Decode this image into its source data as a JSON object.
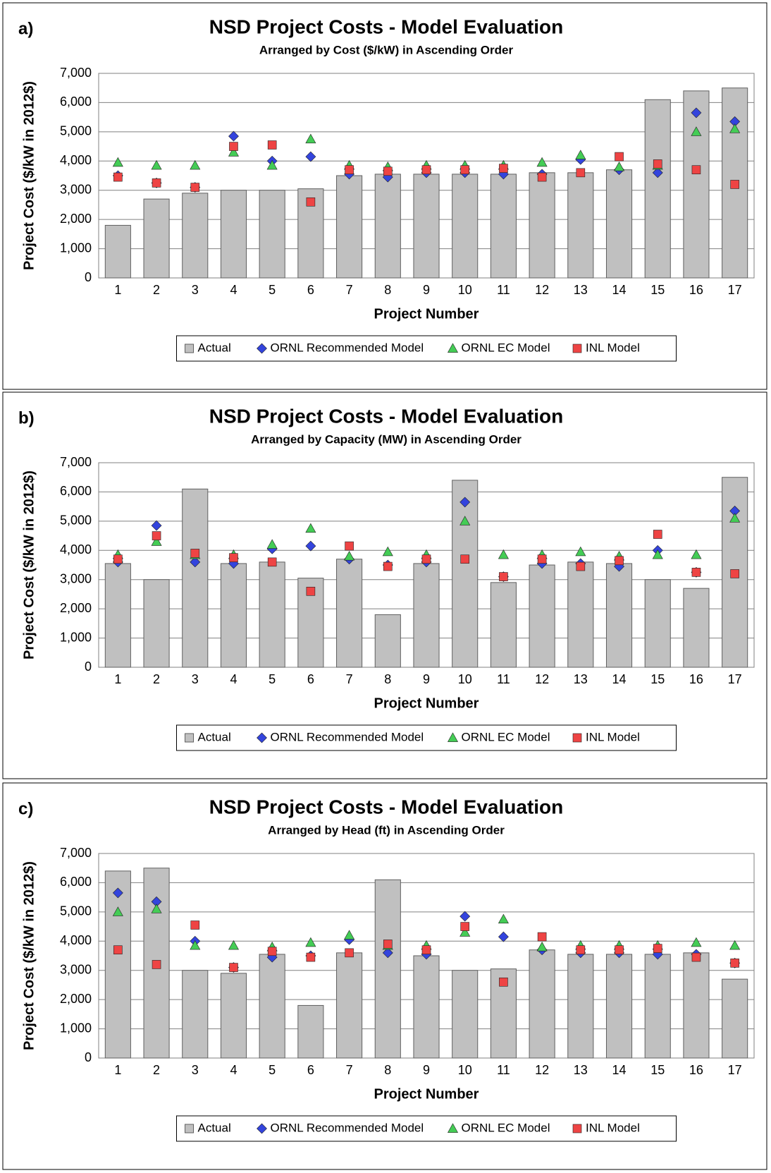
{
  "chart_data": [
    {
      "type": "bar",
      "label": "a)",
      "title": "NSD Project Costs - Model Evaluation",
      "subtitle": "Arranged by Cost ($/kW) in Ascending Order",
      "y_label": "Project Cost ($/kW in 2012$)",
      "x_label": "Project Number",
      "categories": [
        "1",
        "2",
        "3",
        "4",
        "5",
        "6",
        "7",
        "8",
        "9",
        "10",
        "11",
        "12",
        "13",
        "14",
        "15",
        "16",
        "17"
      ],
      "ylim": [
        0,
        7000
      ],
      "yticks": [
        0,
        {
          "value": 1000,
          "label": "1,000"
        },
        {
          "value": 2000,
          "label": "2,000"
        },
        {
          "value": 3000,
          "label": "3,000"
        },
        {
          "value": 4000,
          "label": "4,000"
        },
        {
          "value": 5000,
          "label": "5,000"
        },
        {
          "value": 6000,
          "label": "6,000"
        },
        {
          "value": 7000,
          "label": "7,000"
        }
      ],
      "grid": true,
      "series": [
        {
          "name": "Actual",
          "marker": "bar",
          "color": "#c0c0c0",
          "values": [
            1800,
            2700,
            2900,
            3000,
            3000,
            3050,
            3500,
            3550,
            3550,
            3550,
            3550,
            3600,
            3600,
            3700,
            6100,
            6400,
            6500
          ]
        },
        {
          "name": "ORNL Recommended Model",
          "marker": "diamond",
          "color": "#3344dd",
          "values": [
            3500,
            3250,
            3100,
            4850,
            4000,
            4150,
            3550,
            3450,
            3600,
            3600,
            3550,
            3550,
            4050,
            3700,
            3600,
            5650,
            5350
          ]
        },
        {
          "name": "ORNL EC Model",
          "marker": "triangle",
          "color": "#44cc55",
          "values": [
            3950,
            3850,
            3850,
            4300,
            3850,
            4750,
            3850,
            3800,
            3850,
            3850,
            3850,
            3950,
            4200,
            3800,
            3850,
            5000,
            5100
          ]
        },
        {
          "name": "INL Model",
          "marker": "square",
          "color": "#ee4444",
          "values": [
            3450,
            3250,
            3100,
            4500,
            4550,
            2600,
            3700,
            3650,
            3700,
            3700,
            3750,
            3450,
            3600,
            4150,
            3900,
            3700,
            3200
          ]
        }
      ]
    },
    {
      "type": "bar",
      "label": "b)",
      "title": "NSD Project Costs - Model Evaluation",
      "subtitle": "Arranged by  Capacity (MW) in Ascending Order",
      "y_label": "Project Cost ($/kW in 2012$)",
      "x_label": "Project Number",
      "categories": [
        "1",
        "2",
        "3",
        "4",
        "5",
        "6",
        "7",
        "8",
        "9",
        "10",
        "11",
        "12",
        "13",
        "14",
        "15",
        "16",
        "17"
      ],
      "ylim": [
        0,
        7000
      ],
      "yticks": [
        0,
        {
          "value": 1000,
          "label": "1,000"
        },
        {
          "value": 2000,
          "label": "2,000"
        },
        {
          "value": 3000,
          "label": "3,000"
        },
        {
          "value": 4000,
          "label": "4,000"
        },
        {
          "value": 5000,
          "label": "5,000"
        },
        {
          "value": 6000,
          "label": "6,000"
        },
        {
          "value": 7000,
          "label": "7,000"
        }
      ],
      "grid": true,
      "series": [
        {
          "name": "Actual",
          "marker": "bar",
          "color": "#c0c0c0",
          "values": [
            3550,
            3000,
            6100,
            3550,
            3600,
            3050,
            3700,
            1800,
            3550,
            6400,
            2900,
            3500,
            3600,
            3550,
            3000,
            2700,
            6500
          ]
        },
        {
          "name": "ORNL Recommended Model",
          "marker": "diamond",
          "color": "#3344dd",
          "values": [
            3600,
            4850,
            3600,
            3550,
            4050,
            4150,
            3700,
            3500,
            3600,
            5650,
            3100,
            3550,
            3550,
            3450,
            4000,
            3250,
            5350
          ]
        },
        {
          "name": "ORNL EC Model",
          "marker": "triangle",
          "color": "#44cc55",
          "values": [
            3850,
            4300,
            3850,
            3850,
            4200,
            4750,
            3800,
            3950,
            3850,
            5000,
            3850,
            3850,
            3950,
            3800,
            3850,
            3850,
            5100
          ]
        },
        {
          "name": "INL Model",
          "marker": "square",
          "color": "#ee4444",
          "values": [
            3700,
            4500,
            3900,
            3750,
            3600,
            2600,
            4150,
            3450,
            3700,
            3700,
            3100,
            3700,
            3450,
            3650,
            4550,
            3250,
            3200
          ]
        }
      ]
    },
    {
      "type": "bar",
      "label": "c)",
      "title": "NSD Project Costs - Model Evaluation",
      "subtitle": "Arranged by Head (ft) in Ascending Order",
      "y_label": "Project Cost ($/kW in 2012$)",
      "x_label": "Project Number",
      "categories": [
        "1",
        "2",
        "3",
        "4",
        "5",
        "6",
        "7",
        "8",
        "9",
        "10",
        "11",
        "12",
        "13",
        "14",
        "15",
        "16",
        "17"
      ],
      "ylim": [
        0,
        7000
      ],
      "yticks": [
        0,
        {
          "value": 1000,
          "label": "1,000"
        },
        {
          "value": 2000,
          "label": "2,000"
        },
        {
          "value": 3000,
          "label": "3,000"
        },
        {
          "value": 4000,
          "label": "4,000"
        },
        {
          "value": 5000,
          "label": "5,000"
        },
        {
          "value": 6000,
          "label": "6,000"
        },
        {
          "value": 7000,
          "label": "7,000"
        }
      ],
      "grid": true,
      "series": [
        {
          "name": "Actual",
          "marker": "bar",
          "color": "#c0c0c0",
          "values": [
            6400,
            6500,
            3000,
            2900,
            3550,
            1800,
            3600,
            6100,
            3500,
            3000,
            3050,
            3700,
            3550,
            3550,
            3550,
            3600,
            2700
          ]
        },
        {
          "name": "ORNL Recommended Model",
          "marker": "diamond",
          "color": "#3344dd",
          "values": [
            5650,
            5350,
            4000,
            3100,
            3450,
            3500,
            4050,
            3600,
            3550,
            4850,
            4150,
            3700,
            3600,
            3600,
            3550,
            3550,
            3250
          ]
        },
        {
          "name": "ORNL EC Model",
          "marker": "triangle",
          "color": "#44cc55",
          "values": [
            5000,
            5100,
            3850,
            3850,
            3800,
            3950,
            4200,
            3850,
            3850,
            4300,
            4750,
            3800,
            3850,
            3850,
            3850,
            3950,
            3850
          ]
        },
        {
          "name": "INL Model",
          "marker": "square",
          "color": "#ee4444",
          "values": [
            3700,
            3200,
            4550,
            3100,
            3650,
            3450,
            3600,
            3900,
            3700,
            4500,
            2600,
            4150,
            3700,
            3700,
            3750,
            3450,
            3250
          ]
        }
      ]
    }
  ]
}
